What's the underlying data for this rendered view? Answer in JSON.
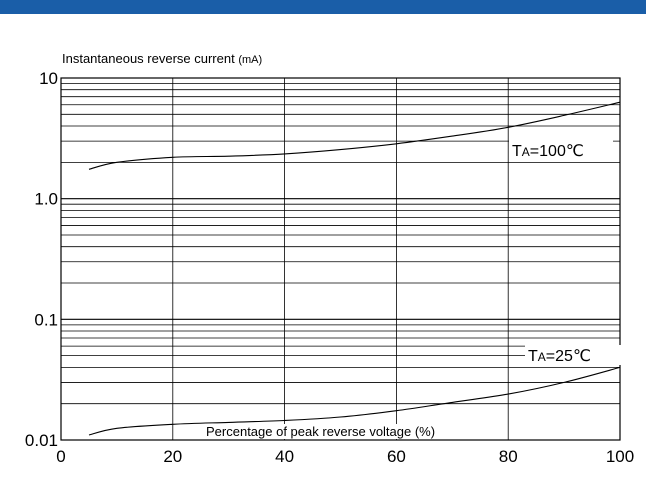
{
  "colors": {
    "header_band": "#1a5ea8",
    "line": "#000000",
    "grid": "#000000"
  },
  "chart_data": {
    "type": "line",
    "ylabel_main": "Instantaneous reverse current",
    "ylabel_unit": "(mA)",
    "xlabel": "Percentage of peak reverse voltage (%)",
    "xlim": [
      0,
      100
    ],
    "ylim": [
      0.01,
      10
    ],
    "yscale": "log",
    "grid": true,
    "x_ticks": [
      0,
      20,
      40,
      60,
      80,
      100
    ],
    "x_tick_labels": [
      "0",
      "20",
      "40",
      "60",
      "80",
      "100"
    ],
    "y_ticks": [
      0.01,
      0.1,
      1,
      10
    ],
    "y_tick_labels": [
      "0.01",
      "0.1",
      "1.0",
      "10"
    ],
    "series": [
      {
        "label_prefix": "T",
        "label_sub": "A",
        "label_suffix": "=100℃",
        "x": [
          5,
          10,
          20,
          30,
          40,
          50,
          60,
          70,
          80,
          90,
          100
        ],
        "y": [
          1.75,
          2.0,
          2.2,
          2.25,
          2.35,
          2.55,
          2.85,
          3.3,
          3.9,
          4.9,
          6.3
        ]
      },
      {
        "label_prefix": "T",
        "label_sub": "A",
        "label_suffix": "=25℃",
        "x": [
          5,
          10,
          20,
          30,
          40,
          50,
          60,
          70,
          80,
          90,
          100
        ],
        "y": [
          0.011,
          0.0125,
          0.0135,
          0.014,
          0.0145,
          0.0155,
          0.0175,
          0.0205,
          0.024,
          0.03,
          0.04
        ]
      }
    ]
  }
}
